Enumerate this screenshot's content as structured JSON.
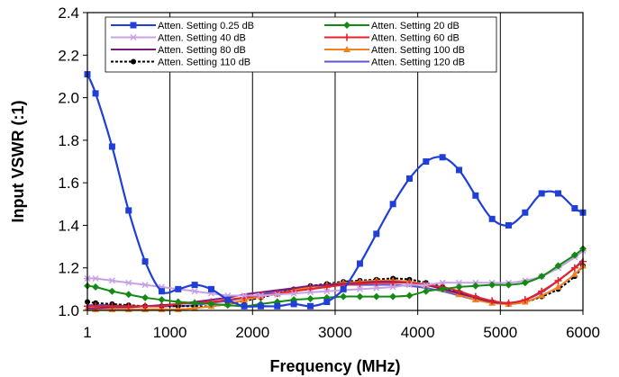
{
  "chart_data": {
    "type": "line",
    "title": "",
    "xlabel": "Frequency (MHz)",
    "ylabel": "Input VSWR (:1)",
    "xlim": [
      1,
      6000
    ],
    "ylim": [
      1.0,
      2.4
    ],
    "x_ticks": [
      1,
      1000,
      2000,
      3000,
      4000,
      5000,
      6000
    ],
    "x_tick_labels": [
      "1",
      "1000",
      "2000",
      "3000",
      "4000",
      "5000",
      "6000"
    ],
    "y_ticks": [
      1.0,
      1.2,
      1.4,
      1.6,
      1.8,
      2.0,
      2.2,
      2.4
    ],
    "y_tick_labels": [
      "1.0",
      "1.2",
      "1.4",
      "1.6",
      "1.8",
      "2.0",
      "2.2",
      "2.4"
    ],
    "grid": "vertical",
    "legend_position": "top",
    "x": [
      1,
      100,
      300,
      500,
      700,
      900,
      1100,
      1300,
      1500,
      1700,
      1900,
      2100,
      2300,
      2500,
      2700,
      2900,
      3100,
      3300,
      3500,
      3700,
      3900,
      4100,
      4300,
      4500,
      4700,
      4900,
      5100,
      5300,
      5500,
      5700,
      5900,
      6000
    ],
    "series": [
      {
        "name": "Atten. Setting 0.25 dB",
        "color": "#1f3fd6",
        "marker": "square",
        "values": [
          2.11,
          2.02,
          1.77,
          1.47,
          1.23,
          1.09,
          1.1,
          1.12,
          1.1,
          1.05,
          1.02,
          1.02,
          1.02,
          1.03,
          1.02,
          1.04,
          1.1,
          1.22,
          1.36,
          1.5,
          1.62,
          1.7,
          1.72,
          1.66,
          1.54,
          1.43,
          1.4,
          1.46,
          1.55,
          1.55,
          1.48,
          1.46
        ]
      },
      {
        "name": "Atten. Setting 20 dB",
        "color": "#138a13",
        "marker": "diamond",
        "values": [
          1.115,
          1.11,
          1.09,
          1.075,
          1.06,
          1.05,
          1.04,
          1.035,
          1.03,
          1.025,
          1.02,
          1.03,
          1.04,
          1.05,
          1.055,
          1.06,
          1.065,
          1.065,
          1.065,
          1.065,
          1.07,
          1.09,
          1.1,
          1.11,
          1.115,
          1.12,
          1.12,
          1.13,
          1.16,
          1.21,
          1.26,
          1.29
        ]
      },
      {
        "name": "Atten. Setting 40 dB",
        "color": "#c8a0e8",
        "marker": "asterisk",
        "values": [
          1.15,
          1.15,
          1.14,
          1.13,
          1.12,
          1.11,
          1.1,
          1.09,
          1.08,
          1.07,
          1.07,
          1.07,
          1.075,
          1.08,
          1.085,
          1.09,
          1.095,
          1.1,
          1.105,
          1.11,
          1.12,
          1.12,
          1.13,
          1.13,
          1.13,
          1.13,
          1.13,
          1.14,
          1.16,
          1.2,
          1.25,
          1.28
        ]
      },
      {
        "name": "Atten. Setting 60 dB",
        "color": "#e8202a",
        "marker": "plus",
        "values": [
          1.02,
          1.02,
          1.02,
          1.02,
          1.02,
          1.02,
          1.03,
          1.035,
          1.04,
          1.05,
          1.06,
          1.07,
          1.08,
          1.09,
          1.1,
          1.11,
          1.12,
          1.125,
          1.13,
          1.13,
          1.13,
          1.12,
          1.11,
          1.09,
          1.065,
          1.045,
          1.035,
          1.05,
          1.09,
          1.14,
          1.2,
          1.23
        ]
      },
      {
        "name": "Atten. Setting 80 dB",
        "color": "#7a1a7a",
        "marker": "none",
        "values": [
          1.01,
          1.01,
          1.015,
          1.015,
          1.02,
          1.025,
          1.03,
          1.04,
          1.05,
          1.06,
          1.075,
          1.085,
          1.095,
          1.105,
          1.115,
          1.12,
          1.125,
          1.13,
          1.135,
          1.135,
          1.13,
          1.12,
          1.1,
          1.08,
          1.06,
          1.04,
          1.035,
          1.05,
          1.09,
          1.14,
          1.2,
          1.23
        ]
      },
      {
        "name": "Atten. Setting 100 dB",
        "color": "#f08020",
        "marker": "triangle",
        "values": [
          1.01,
          1.005,
          1.005,
          1.005,
          1.005,
          1.005,
          1.005,
          1.01,
          1.02,
          1.03,
          1.05,
          1.065,
          1.08,
          1.095,
          1.11,
          1.12,
          1.13,
          1.135,
          1.14,
          1.14,
          1.135,
          1.12,
          1.1,
          1.075,
          1.05,
          1.035,
          1.03,
          1.04,
          1.07,
          1.11,
          1.17,
          1.21
        ]
      },
      {
        "name": "Atten. Setting 110 dB",
        "color": "#000000",
        "marker": "circle",
        "dashed": true,
        "values": [
          1.04,
          1.035,
          1.03,
          1.025,
          1.02,
          1.02,
          1.02,
          1.02,
          1.02,
          1.03,
          1.045,
          1.06,
          1.08,
          1.1,
          1.115,
          1.125,
          1.135,
          1.14,
          1.145,
          1.15,
          1.145,
          1.13,
          1.11,
          1.085,
          1.06,
          1.04,
          1.03,
          1.04,
          1.065,
          1.1,
          1.16,
          1.21
        ]
      },
      {
        "name": "Atten. Setting 120 dB",
        "color": "#5a5ac8",
        "marker": "none",
        "values": [
          1.025,
          1.025,
          1.025,
          1.02,
          1.02,
          1.02,
          1.02,
          1.025,
          1.035,
          1.045,
          1.06,
          1.075,
          1.09,
          1.1,
          1.11,
          1.115,
          1.12,
          1.12,
          1.12,
          1.12,
          1.115,
          1.105,
          1.09,
          1.07,
          1.05,
          1.04,
          1.035,
          1.05,
          1.085,
          1.14,
          1.2,
          1.24
        ]
      }
    ]
  }
}
